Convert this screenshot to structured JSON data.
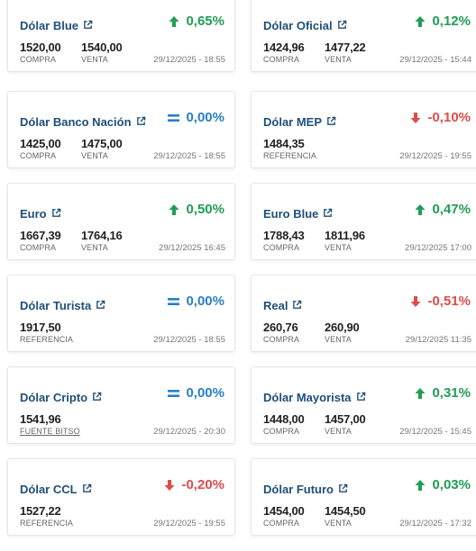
{
  "colors": {
    "up": "#1f9d55",
    "down": "#e04b4b",
    "equal": "#2a7fc4",
    "title": "#1f4e79"
  },
  "cards": [
    {
      "title": "Dólar Blue",
      "trend": "up",
      "change": "0,65%",
      "v1": "1520,00",
      "l1": "COMPRA",
      "v2": "1540,00",
      "l2": "VENTA",
      "date": "29/12/2025 - 18:55"
    },
    {
      "title": "Dólar Oficial",
      "trend": "up",
      "change": "0,12%",
      "v1": "1424,96",
      "l1": "COMPRA",
      "v2": "1477,22",
      "l2": "VENTA",
      "date": "29/12/2025 - 15:44"
    },
    {
      "title": "Dólar Banco Nación",
      "trend": "equal",
      "change": "0,00%",
      "v1": "1425,00",
      "l1": "COMPRA",
      "v2": "1475,00",
      "l2": "VENTA",
      "date": "29/12/2025 - 18:55"
    },
    {
      "title": "Dólar MEP",
      "trend": "down",
      "change": "-0,10%",
      "v1": "1484,35",
      "l1": "REFERENCIA",
      "v2": "",
      "l2": "",
      "date": "29/12/2025 - 19:55"
    },
    {
      "title": "Euro",
      "trend": "up",
      "change": "0,50%",
      "v1": "1667,39",
      "l1": "COMPRA",
      "v2": "1764,16",
      "l2": "VENTA",
      "date": "29/12/2025 16:45"
    },
    {
      "title": "Euro Blue",
      "trend": "up",
      "change": "0,47%",
      "v1": "1788,43",
      "l1": "COMPRA",
      "v2": "1811,96",
      "l2": "VENTA",
      "date": "29/12/2025 17:00"
    },
    {
      "title": "Dólar Turista",
      "trend": "equal",
      "change": "0,00%",
      "v1": "1917,50",
      "l1": "REFERENCIA",
      "v2": "",
      "l2": "",
      "date": "29/12/2025 - 18:55"
    },
    {
      "title": "Real",
      "trend": "down",
      "change": "-0,51%",
      "v1": "260,76",
      "l1": "COMPRA",
      "v2": "260,90",
      "l2": "VENTA",
      "date": "29/12/2025 11:35"
    },
    {
      "title": "Dólar Cripto",
      "trend": "equal",
      "change": "0,00%",
      "v1": "1541,96",
      "l1": "FUENTE BITSO",
      "v2": "",
      "l2": "",
      "date": "29/12/2025 - 20:30"
    },
    {
      "title": "Dólar Mayorista",
      "trend": "up",
      "change": "0,31%",
      "v1": "1448,00",
      "l1": "COMPRA",
      "v2": "1457,00",
      "l2": "VENTA",
      "date": "29/12/2025 - 15:45"
    },
    {
      "title": "Dólar CCL",
      "trend": "down",
      "change": "-0,20%",
      "v1": "1527,22",
      "l1": "REFERENCIA",
      "v2": "",
      "l2": "",
      "date": "29/12/2025 - 19:55"
    },
    {
      "title": "Dólar Futuro",
      "trend": "up",
      "change": "0,03%",
      "v1": "1454,00",
      "l1": "COMPRA",
      "v2": "1454,50",
      "l2": "VENTA",
      "date": "29/12/2025 - 17:32"
    }
  ]
}
